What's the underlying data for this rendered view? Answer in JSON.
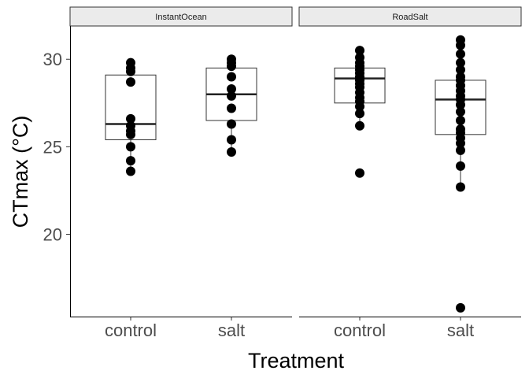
{
  "chart_data": {
    "type": "boxplot",
    "xlabel": "Treatment",
    "ylabel": "CTmax (°C)",
    "ylim": [
      15.3,
      31.9
    ],
    "yticks": [
      20,
      25,
      30
    ],
    "categories": [
      "control",
      "salt"
    ],
    "grid": false,
    "colors": {
      "points": "#000000",
      "strip_fill": "#ebebeb",
      "strip_border": "#333333",
      "box_fill": "#ffffff"
    },
    "facets": [
      {
        "label": "InstantOcean",
        "groups": [
          {
            "category": "control",
            "q1": 25.4,
            "median": 26.3,
            "q3": 29.1,
            "whisker_low": 23.6,
            "whisker_high": 29.8,
            "points": [
              29.8,
              29.5,
              29.3,
              28.7,
              26.6,
              26.2,
              25.9,
              25.7,
              25.0,
              24.2,
              23.6
            ]
          },
          {
            "category": "salt",
            "q1": 26.5,
            "median": 28.0,
            "q3": 29.5,
            "whisker_low": 24.7,
            "whisker_high": 30.0,
            "points": [
              30.0,
              29.8,
              29.6,
              29.0,
              28.3,
              27.9,
              27.2,
              26.3,
              25.4,
              24.7
            ]
          }
        ]
      },
      {
        "label": "RoadSalt",
        "groups": [
          {
            "category": "control",
            "q1": 27.5,
            "median": 28.9,
            "q3": 29.5,
            "whisker_low": 26.2,
            "whisker_high": 30.5,
            "points": [
              30.5,
              30.1,
              29.8,
              29.6,
              29.4,
              29.2,
              29.0,
              28.9,
              28.8,
              28.6,
              28.4,
              28.1,
              27.8,
              27.6,
              27.3,
              26.9,
              26.2,
              23.5
            ]
          },
          {
            "category": "salt",
            "q1": 25.7,
            "median": 27.7,
            "q3": 28.8,
            "whisker_low": 22.7,
            "whisker_high": 31.1,
            "points": [
              31.1,
              30.8,
              30.3,
              29.8,
              29.4,
              29.0,
              28.8,
              28.5,
              28.2,
              27.9,
              27.7,
              27.4,
              27.0,
              26.5,
              26.0,
              25.8,
              25.5,
              25.2,
              24.8,
              23.9,
              22.7,
              15.8
            ]
          }
        ]
      }
    ]
  }
}
